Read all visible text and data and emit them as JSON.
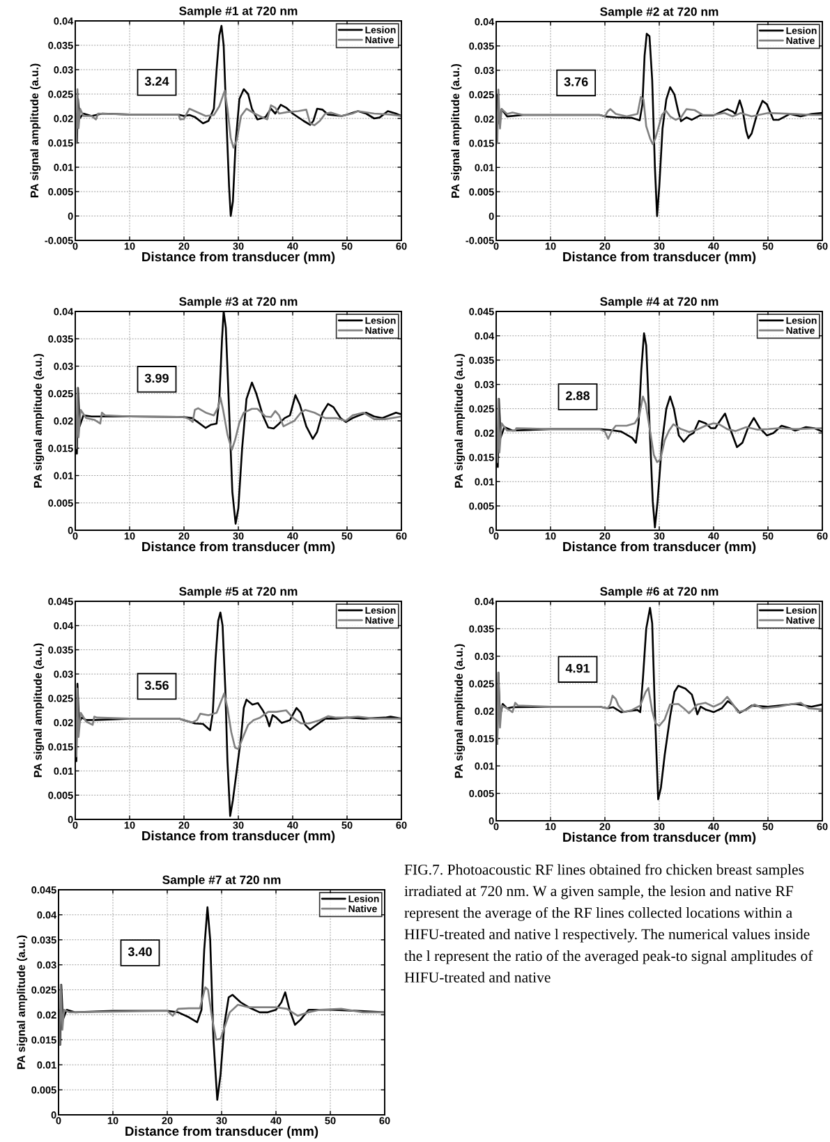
{
  "chart_data": [
    {
      "type": "line",
      "title": "Sample #1 at 720 nm",
      "xlabel": "Distance from transducer (mm)",
      "ylabel": "PA signal amplitude (a.u.)",
      "xlim": [
        0,
        60
      ],
      "xticks": [
        0,
        10,
        20,
        30,
        40,
        50,
        60
      ],
      "ylim": [
        -0.005,
        0.04
      ],
      "yticks": [
        -0.005,
        0,
        0.005,
        0.01,
        0.015,
        0.02,
        0.025,
        0.03,
        0.035,
        0.04
      ],
      "grid": true,
      "legend": "top right",
      "annotations": [
        "3.24"
      ],
      "series": [
        {
          "name": "Lesion",
          "color": "#000000",
          "x": [
            0,
            0.3,
            0.5,
            0.8,
            1.5,
            3,
            5,
            10,
            19,
            20,
            21,
            22,
            23.5,
            24.5,
            25.5,
            26,
            26.5,
            26.9,
            27.3,
            27.8,
            28.3,
            28.6,
            29,
            29.5,
            30.2,
            31,
            31.8,
            32.5,
            33.5,
            35,
            36,
            36.8,
            37.8,
            38.8,
            40,
            42,
            43.2,
            43.8,
            44.5,
            45.5,
            46.5,
            49,
            50,
            52,
            53.5,
            55,
            56,
            57.5,
            59,
            60
          ],
          "values": [
            0.021,
            0.015,
            0.024,
            0.02,
            0.021,
            0.0205,
            0.021,
            0.0208,
            0.0208,
            0.0205,
            0.0207,
            0.0203,
            0.019,
            0.0195,
            0.022,
            0.03,
            0.037,
            0.039,
            0.035,
            0.02,
            0.006,
            0,
            0.003,
            0.015,
            0.024,
            0.026,
            0.025,
            0.022,
            0.0198,
            0.0203,
            0.022,
            0.021,
            0.0228,
            0.0222,
            0.021,
            0.0195,
            0.0187,
            0.0195,
            0.022,
            0.0218,
            0.0208,
            0.0205,
            0.0208,
            0.0215,
            0.021,
            0.02,
            0.0202,
            0.0215,
            0.021,
            0.0205
          ]
        },
        {
          "name": "Native",
          "color": "#808080",
          "x": [
            0,
            0.2,
            0.4,
            0.6,
            0.9,
            1.5,
            3,
            3.8,
            4.2,
            10,
            19,
            19.3,
            20,
            20.5,
            21,
            22,
            24,
            25.5,
            26.5,
            27.5,
            28,
            28.6,
            29.1,
            29.7,
            30.5,
            31.5,
            33,
            34.5,
            35.3,
            36,
            36.8,
            37.5,
            39,
            41,
            42.5,
            43.2,
            44,
            45,
            46,
            47,
            49,
            51,
            52,
            55,
            58,
            60
          ],
          "values": [
            0.021,
            0.015,
            0.026,
            0.018,
            0.022,
            0.0205,
            0.0205,
            0.0198,
            0.021,
            0.0208,
            0.0208,
            0.0198,
            0.0199,
            0.021,
            0.022,
            0.0215,
            0.0205,
            0.0207,
            0.0225,
            0.0257,
            0.022,
            0.016,
            0.014,
            0.0155,
            0.0205,
            0.022,
            0.021,
            0.0202,
            0.0198,
            0.0227,
            0.0222,
            0.021,
            0.0213,
            0.0215,
            0.0218,
            0.019,
            0.0186,
            0.0195,
            0.021,
            0.0212,
            0.0205,
            0.021,
            0.0215,
            0.021,
            0.0208,
            0.0205
          ]
        }
      ]
    },
    {
      "type": "line",
      "title": "Sample #2 at 720 nm",
      "xlabel": "Distance from transducer (mm)",
      "ylabel": "PA signal amplitude (a.u.)",
      "xlim": [
        0,
        60
      ],
      "xticks": [
        0,
        10,
        20,
        30,
        40,
        50,
        60
      ],
      "ylim": [
        -0.005,
        0.04
      ],
      "yticks": [
        -0.005,
        0,
        0.005,
        0.01,
        0.015,
        0.02,
        0.025,
        0.03,
        0.035,
        0.04
      ],
      "grid": true,
      "legend": "top right",
      "annotations": [
        "3.76"
      ],
      "series": [
        {
          "name": "Lesion",
          "color": "#000000",
          "x": [
            0,
            0.3,
            0.6,
            1,
            2,
            5,
            19,
            20,
            22,
            25,
            26.4,
            26.9,
            27.3,
            27.7,
            28.2,
            28.7,
            29.2,
            29.6,
            30,
            30.6,
            31.3,
            32,
            32.8,
            33.5,
            34,
            35,
            36,
            37.5,
            40,
            41.5,
            42.5,
            43.5,
            44,
            44.8,
            45.3,
            46,
            46.4,
            47,
            48,
            49,
            49.8,
            51,
            52,
            54,
            56,
            58,
            60
          ],
          "values": [
            0.021,
            0.025,
            0.019,
            0.022,
            0.0205,
            0.0208,
            0.0208,
            0.0205,
            0.0203,
            0.0202,
            0.0197,
            0.023,
            0.033,
            0.0375,
            0.037,
            0.028,
            0.01,
            0,
            0.006,
            0.018,
            0.024,
            0.0265,
            0.025,
            0.0215,
            0.0195,
            0.0203,
            0.0198,
            0.0207,
            0.0207,
            0.0215,
            0.022,
            0.0215,
            0.021,
            0.0238,
            0.022,
            0.0175,
            0.016,
            0.017,
            0.021,
            0.0237,
            0.023,
            0.0198,
            0.0198,
            0.021,
            0.0205,
            0.021,
            0.0212
          ]
        },
        {
          "name": "Native",
          "color": "#808080",
          "x": [
            0,
            0.2,
            0.4,
            0.7,
            1,
            2,
            3,
            5,
            19,
            20,
            20.5,
            21,
            22,
            24,
            26,
            26.6,
            27.1,
            27.6,
            28.3,
            28.8,
            29.3,
            29.8,
            30.5,
            31.2,
            32,
            33,
            34,
            35,
            36.5,
            38,
            40,
            42,
            43.5,
            45,
            47,
            50,
            55,
            58,
            60
          ],
          "values": [
            0.021,
            0.015,
            0.026,
            0.018,
            0.022,
            0.021,
            0.0213,
            0.0208,
            0.0208,
            0.0205,
            0.0215,
            0.022,
            0.021,
            0.0205,
            0.021,
            0.0245,
            0.024,
            0.0185,
            0.016,
            0.0148,
            0.016,
            0.018,
            0.0208,
            0.0217,
            0.0205,
            0.0198,
            0.0203,
            0.022,
            0.0218,
            0.0208,
            0.0208,
            0.0212,
            0.0205,
            0.0212,
            0.0205,
            0.0212,
            0.021,
            0.0208,
            0.0208
          ]
        }
      ]
    },
    {
      "type": "line",
      "title": "Sample #3 at 720 nm",
      "xlabel": "Distance from transducer (mm)",
      "ylabel": "PA signal amplitude (a.u.)",
      "xlim": [
        0,
        60
      ],
      "xticks": [
        0,
        10,
        20,
        30,
        40,
        50,
        60
      ],
      "ylim": [
        0,
        0.04
      ],
      "yticks": [
        0,
        0.005,
        0.01,
        0.015,
        0.02,
        0.025,
        0.03,
        0.035,
        0.04
      ],
      "grid": true,
      "legend": "top right",
      "annotations": [
        "3.99"
      ],
      "series": [
        {
          "name": "Lesion",
          "color": "#000000",
          "x": [
            0,
            0.3,
            0.5,
            0.8,
            1.5,
            3,
            10,
            20,
            21.5,
            22.5,
            24,
            25,
            26,
            26.5,
            27,
            27.3,
            27.7,
            28.3,
            28.9,
            29.5,
            30,
            30.7,
            31.5,
            32.5,
            33.3,
            34.5,
            35.5,
            36.5,
            37.5,
            38.5,
            39.5,
            40.5,
            41.3,
            42.5,
            43.7,
            44.5,
            45.5,
            46.5,
            47.5,
            48.8,
            49.8,
            51,
            53.5,
            55,
            56.5,
            59,
            60
          ],
          "values": [
            0.021,
            0.014,
            0.026,
            0.019,
            0.021,
            0.0208,
            0.0208,
            0.0207,
            0.0205,
            0.0198,
            0.0187,
            0.0193,
            0.0195,
            0.024,
            0.035,
            0.04,
            0.037,
            0.022,
            0.007,
            0.0012,
            0.004,
            0.015,
            0.024,
            0.027,
            0.025,
            0.021,
            0.0188,
            0.0186,
            0.0195,
            0.0205,
            0.021,
            0.0247,
            0.023,
            0.019,
            0.0167,
            0.018,
            0.0215,
            0.0231,
            0.0225,
            0.0205,
            0.0198,
            0.0205,
            0.0215,
            0.0208,
            0.0205,
            0.0215,
            0.0212
          ]
        },
        {
          "name": "Native",
          "color": "#808080",
          "x": [
            0,
            0.2,
            0.4,
            0.6,
            1,
            2,
            3.5,
            4.6,
            4.9,
            5.5,
            10,
            20,
            21,
            21.6,
            22,
            22.6,
            24,
            25.5,
            26.3,
            26.7,
            27.2,
            28,
            28.8,
            29.4,
            30.2,
            31,
            32.5,
            33.5,
            35,
            36,
            36.8,
            37.5,
            38.3,
            39.3,
            40.3,
            41.5,
            42.3,
            44,
            46,
            48,
            49.8,
            51,
            53,
            55,
            57,
            60
          ],
          "values": [
            0.021,
            0.015,
            0.026,
            0.017,
            0.022,
            0.0205,
            0.0202,
            0.0195,
            0.0215,
            0.021,
            0.0208,
            0.0207,
            0.0203,
            0.0198,
            0.022,
            0.0223,
            0.0215,
            0.021,
            0.0225,
            0.0243,
            0.022,
            0.0175,
            0.0147,
            0.0165,
            0.0197,
            0.0215,
            0.0222,
            0.0222,
            0.0208,
            0.0207,
            0.0218,
            0.021,
            0.019,
            0.0195,
            0.02,
            0.0215,
            0.022,
            0.0215,
            0.0205,
            0.0205,
            0.02,
            0.021,
            0.0215,
            0.0203,
            0.0203,
            0.0208
          ]
        }
      ]
    },
    {
      "type": "line",
      "title": "Sample #4 at 720 nm",
      "xlabel": "Distance from transducer (mm)",
      "ylabel": "PA signal amplitude (a.u.)",
      "xlim": [
        0,
        60
      ],
      "xticks": [
        0,
        10,
        20,
        30,
        40,
        50,
        60
      ],
      "ylim": [
        0,
        0.045
      ],
      "yticks": [
        0,
        0.005,
        0.01,
        0.015,
        0.02,
        0.025,
        0.03,
        0.035,
        0.04,
        0.045
      ],
      "grid": true,
      "legend": "top right",
      "annotations": [
        "2.88"
      ],
      "series": [
        {
          "name": "Lesion",
          "color": "#000000",
          "x": [
            0,
            0.3,
            0.5,
            0.8,
            1.5,
            3,
            10,
            19,
            21,
            23,
            25,
            25.7,
            26.2,
            26.7,
            27.2,
            27.6,
            28.2,
            28.8,
            29.2,
            29.7,
            30.5,
            31.3,
            32,
            32.7,
            33.6,
            34.5,
            35.5,
            36.3,
            37.3,
            38.5,
            39.5,
            40.3,
            41,
            42.1,
            43,
            44.3,
            45.3,
            46.3,
            47.4,
            48.5,
            49.8,
            51,
            52.5,
            54,
            55,
            57,
            58.5,
            60
          ],
          "values": [
            0.021,
            0.013,
            0.027,
            0.019,
            0.0212,
            0.0205,
            0.0208,
            0.0208,
            0.0206,
            0.0203,
            0.019,
            0.018,
            0.022,
            0.033,
            0.0405,
            0.038,
            0.022,
            0.006,
            0.0006,
            0.006,
            0.018,
            0.025,
            0.0275,
            0.025,
            0.0195,
            0.0182,
            0.0195,
            0.02,
            0.0225,
            0.022,
            0.021,
            0.021,
            0.0222,
            0.024,
            0.021,
            0.0171,
            0.018,
            0.021,
            0.0231,
            0.021,
            0.0195,
            0.02,
            0.0215,
            0.021,
            0.0205,
            0.0212,
            0.021,
            0.0203
          ]
        },
        {
          "name": "Native",
          "color": "#808080",
          "x": [
            0,
            0.2,
            0.4,
            0.6,
            1,
            2,
            3.5,
            3.7,
            10,
            19,
            20,
            20.6,
            21.3,
            22,
            24,
            25.5,
            26.3,
            27,
            27.5,
            28.3,
            29,
            29.6,
            30.2,
            31,
            31.8,
            32.6,
            34,
            35.5,
            37,
            38.5,
            40,
            41,
            42.5,
            44,
            46,
            48,
            50,
            52,
            55,
            60
          ],
          "values": [
            0.021,
            0.014,
            0.027,
            0.016,
            0.022,
            0.0205,
            0.0205,
            0.021,
            0.0208,
            0.0208,
            0.0203,
            0.0188,
            0.0205,
            0.0215,
            0.0215,
            0.022,
            0.0235,
            0.0275,
            0.026,
            0.0205,
            0.0155,
            0.014,
            0.0145,
            0.0185,
            0.0205,
            0.0218,
            0.0208,
            0.0202,
            0.0207,
            0.0215,
            0.022,
            0.0218,
            0.0208,
            0.0204,
            0.0212,
            0.0207,
            0.0208,
            0.021,
            0.0208,
            0.021
          ]
        }
      ]
    },
    {
      "type": "line",
      "title": "Sample #5 at 720 nm",
      "xlabel": "Distance from transducer (mm)",
      "ylabel": "PA signal amplitude (a.u.)",
      "xlim": [
        0,
        60
      ],
      "xticks": [
        0,
        10,
        20,
        30,
        40,
        50,
        60
      ],
      "ylim": [
        0,
        0.045
      ],
      "yticks": [
        0,
        0.005,
        0.01,
        0.015,
        0.02,
        0.025,
        0.03,
        0.035,
        0.04,
        0.045
      ],
      "grid": true,
      "legend": "top right",
      "annotations": [
        "3.56"
      ],
      "series": [
        {
          "name": "Lesion",
          "color": "#000000",
          "x": [
            0,
            0.2,
            0.4,
            0.7,
            1.2,
            2,
            3.5,
            10,
            19,
            20.5,
            22,
            23.5,
            24.8,
            25.3,
            25.8,
            26.3,
            26.7,
            27.1,
            27.6,
            28,
            28.5,
            29,
            29.7,
            30.5,
            31,
            31.5,
            32.6,
            33.6,
            34.5,
            35.2,
            35.7,
            36.3,
            37,
            38,
            39.5,
            40.7,
            41.5,
            42.3,
            43.2,
            44,
            46,
            48,
            50,
            53,
            57,
            58,
            60
          ],
          "values": [
            0.021,
            0.012,
            0.028,
            0.02,
            0.021,
            0.0205,
            0.0205,
            0.0208,
            0.0208,
            0.0203,
            0.0198,
            0.0197,
            0.0184,
            0.022,
            0.033,
            0.041,
            0.0427,
            0.04,
            0.027,
            0.012,
            0.0007,
            0.004,
            0.01,
            0.017,
            0.023,
            0.0247,
            0.0237,
            0.024,
            0.0225,
            0.021,
            0.0192,
            0.0215,
            0.021,
            0.0199,
            0.0205,
            0.023,
            0.022,
            0.0195,
            0.0185,
            0.0192,
            0.0208,
            0.0208,
            0.021,
            0.0208,
            0.021,
            0.0212,
            0.0208
          ]
        },
        {
          "name": "Native",
          "color": "#808080",
          "x": [
            0,
            0.2,
            0.4,
            0.6,
            1,
            2,
            3.2,
            3.5,
            4,
            10,
            19,
            20,
            21.5,
            22.4,
            23,
            24.5,
            26,
            26.7,
            27.4,
            28,
            28.7,
            29.4,
            30,
            30.8,
            31.8,
            32.8,
            34,
            35.5,
            37,
            38.8,
            40,
            41.5,
            43,
            45,
            46.5,
            48,
            50,
            52,
            55,
            60
          ],
          "values": [
            0.021,
            0.013,
            0.027,
            0.017,
            0.022,
            0.0202,
            0.0195,
            0.0212,
            0.021,
            0.0208,
            0.0208,
            0.0205,
            0.02,
            0.0205,
            0.0218,
            0.0215,
            0.022,
            0.024,
            0.026,
            0.023,
            0.018,
            0.0148,
            0.0145,
            0.0168,
            0.0195,
            0.0205,
            0.021,
            0.0222,
            0.0222,
            0.0225,
            0.021,
            0.0198,
            0.0198,
            0.0205,
            0.0213,
            0.021,
            0.021,
            0.0212,
            0.0208,
            0.0208
          ]
        }
      ]
    },
    {
      "type": "line",
      "title": "Sample #6 at 720 nm",
      "xlabel": "Distance from transducer (mm)",
      "ylabel": "PA signal amplitude (a.u.)",
      "xlim": [
        0,
        60
      ],
      "xticks": [
        0,
        10,
        20,
        30,
        40,
        50,
        60
      ],
      "ylim": [
        0,
        0.04
      ],
      "yticks": [
        0,
        0.005,
        0.01,
        0.015,
        0.02,
        0.025,
        0.03,
        0.035,
        0.04
      ],
      "grid": true,
      "legend": "top right",
      "annotations": [
        "4.91"
      ],
      "series": [
        {
          "name": "Lesion",
          "color": "#000000",
          "x": [
            0,
            0.2,
            0.4,
            0.7,
            1.2,
            2,
            3,
            10,
            19,
            20.5,
            21.5,
            23,
            24.5,
            26,
            26.5,
            27,
            27.6,
            28.3,
            28.7,
            29.2,
            29.8,
            30.3,
            31,
            32,
            32.8,
            33.5,
            34.8,
            36,
            36.6,
            37,
            37.6,
            38.5,
            40,
            41.5,
            42.6,
            43.5,
            44.8,
            46,
            47,
            50,
            55,
            58,
            60
          ],
          "values": [
            0.021,
            0.014,
            0.027,
            0.019,
            0.0213,
            0.0205,
            0.0207,
            0.0208,
            0.0208,
            0.0205,
            0.0207,
            0.0198,
            0.02,
            0.0202,
            0.0198,
            0.026,
            0.035,
            0.0388,
            0.036,
            0.02,
            0.0039,
            0.006,
            0.012,
            0.019,
            0.0235,
            0.0246,
            0.0241,
            0.023,
            0.021,
            0.0194,
            0.0208,
            0.0203,
            0.0198,
            0.0205,
            0.0218,
            0.0212,
            0.0197,
            0.0203,
            0.021,
            0.0208,
            0.0213,
            0.0208,
            0.0212
          ]
        },
        {
          "name": "Native",
          "color": "#808080",
          "x": [
            0,
            0.2,
            0.4,
            0.7,
            1,
            2,
            3,
            3.5,
            4,
            10,
            19,
            20.5,
            21,
            21.4,
            22,
            22.5,
            23.5,
            25,
            26.5,
            27.5,
            28,
            28.7,
            29.3,
            30,
            31,
            32,
            33.5,
            34.5,
            35.5,
            37,
            38.5,
            40,
            41.5,
            42.5,
            43.5,
            44.5,
            46,
            47.5,
            49,
            52,
            54,
            56,
            57.5,
            60
          ],
          "values": [
            0.021,
            0.014,
            0.027,
            0.017,
            0.021,
            0.0205,
            0.0198,
            0.0215,
            0.021,
            0.0208,
            0.0208,
            0.0205,
            0.0212,
            0.0228,
            0.0222,
            0.021,
            0.0198,
            0.0202,
            0.021,
            0.0235,
            0.0242,
            0.02,
            0.0178,
            0.0173,
            0.0185,
            0.0212,
            0.0213,
            0.0205,
            0.0196,
            0.0212,
            0.0215,
            0.0208,
            0.0215,
            0.0226,
            0.0213,
            0.0198,
            0.0202,
            0.0212,
            0.0205,
            0.0208,
            0.0212,
            0.0215,
            0.0205,
            0.0203
          ]
        }
      ]
    },
    {
      "type": "line",
      "title": "Sample #7 at 720 nm",
      "xlabel": "Distance from transducer (mm)",
      "ylabel": "PA signal amplitude (a.u.)",
      "xlim": [
        0,
        60
      ],
      "xticks": [
        0,
        10,
        20,
        30,
        40,
        50,
        60
      ],
      "ylim": [
        0,
        0.045
      ],
      "yticks": [
        0,
        0.005,
        0.01,
        0.015,
        0.02,
        0.025,
        0.03,
        0.035,
        0.04,
        0.045
      ],
      "grid": true,
      "legend": "top right",
      "annotations": [
        "3.40"
      ],
      "series": [
        {
          "name": "Lesion",
          "color": "#000000",
          "x": [
            0,
            0.3,
            0.5,
            0.8,
            1.5,
            3,
            10,
            20,
            22,
            24,
            25.5,
            26.3,
            26.8,
            27.4,
            27.9,
            28.5,
            29.2,
            29.8,
            30.5,
            31.3,
            32,
            33.5,
            35,
            37,
            38.5,
            40,
            41,
            41.7,
            42.5,
            43.5,
            44.5,
            46,
            50,
            55,
            60
          ],
          "values": [
            0.021,
            0.014,
            0.026,
            0.019,
            0.021,
            0.0205,
            0.0208,
            0.0208,
            0.0205,
            0.0195,
            0.0185,
            0.021,
            0.033,
            0.0415,
            0.035,
            0.015,
            0.003,
            0.008,
            0.018,
            0.0235,
            0.024,
            0.0225,
            0.0215,
            0.0205,
            0.0205,
            0.021,
            0.0225,
            0.0245,
            0.021,
            0.018,
            0.019,
            0.021,
            0.021,
            0.0208,
            0.0205
          ]
        },
        {
          "name": "Native",
          "color": "#808080",
          "x": [
            0,
            0.2,
            0.4,
            0.7,
            1,
            2,
            20,
            21,
            22,
            24,
            26,
            27,
            27.5,
            28.3,
            29,
            29.8,
            30.7,
            31.5,
            33,
            35,
            37,
            40,
            42,
            44,
            46,
            48,
            52,
            56,
            60
          ],
          "values": [
            0.021,
            0.014,
            0.026,
            0.017,
            0.021,
            0.0205,
            0.0208,
            0.0198,
            0.0212,
            0.0213,
            0.0213,
            0.0255,
            0.025,
            0.019,
            0.015,
            0.0152,
            0.018,
            0.0205,
            0.022,
            0.0215,
            0.0215,
            0.0215,
            0.0212,
            0.0198,
            0.0205,
            0.021,
            0.0212,
            0.0205,
            0.0205
          ]
        }
      ]
    },
    {
      "type": "other",
      "annotations": [
        "FIG.7. Photoacoustic RF lines obtained fro chicken breast samples irradiated at 720 nm. W a given sample, the lesion and native RF represent the average of the RF lines collected locations within a HIFU-treated and native l respectively. The numerical values inside the l represent the ratio of the averaged peak-to signal amplitudes of HIFU-treated and native"
      ]
    }
  ]
}
